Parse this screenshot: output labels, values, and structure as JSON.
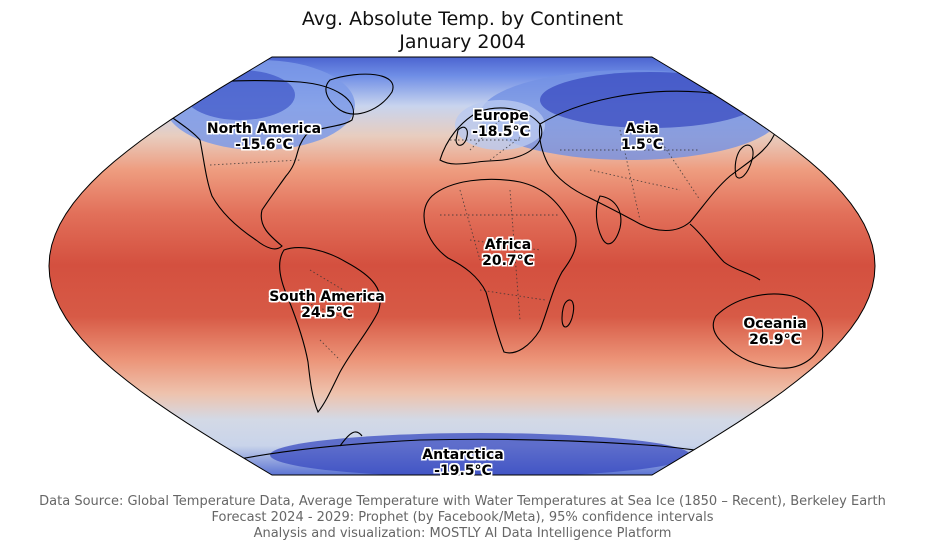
{
  "title": {
    "line1": "Avg. Absolute Temp. by Continent",
    "line2": "January 2004"
  },
  "continents": [
    {
      "key": "north_america",
      "name": "North America",
      "temp": "-15.6°C",
      "temp_c": -15.6
    },
    {
      "key": "europe",
      "name": "Europe",
      "temp": "-18.5°C",
      "temp_c": -18.5
    },
    {
      "key": "asia",
      "name": "Asia",
      "temp": "1.5°C",
      "temp_c": 1.5
    },
    {
      "key": "africa",
      "name": "Africa",
      "temp": "20.7°C",
      "temp_c": 20.7
    },
    {
      "key": "south_america",
      "name": "South America",
      "temp": "24.5°C",
      "temp_c": 24.5
    },
    {
      "key": "oceania",
      "name": "Oceania",
      "temp": "26.9°C",
      "temp_c": 26.9
    },
    {
      "key": "antarctica",
      "name": "Antarctica",
      "temp": "-19.5°C",
      "temp_c": -19.5
    }
  ],
  "footer": {
    "line1": "Data Source: Global Temperature Data, Average Temperature with Water Temperatures at Sea Ice (1850 – Recent), Berkeley Earth",
    "line2": "Forecast 2024 - 2029: Prophet (by Facebook/Meta), 95% confidence intervals",
    "line3": "Analysis and visualization: MOSTLY AI Data Intelligence Platform"
  },
  "map_style": {
    "projection": "Robinson",
    "colormap": "coolwarm",
    "cold_color": "#3b4cc0",
    "neutral_color": "#dddddd",
    "warm_color": "#d24e3e",
    "coastline_color": "#000000",
    "border_style": "dotted"
  }
}
